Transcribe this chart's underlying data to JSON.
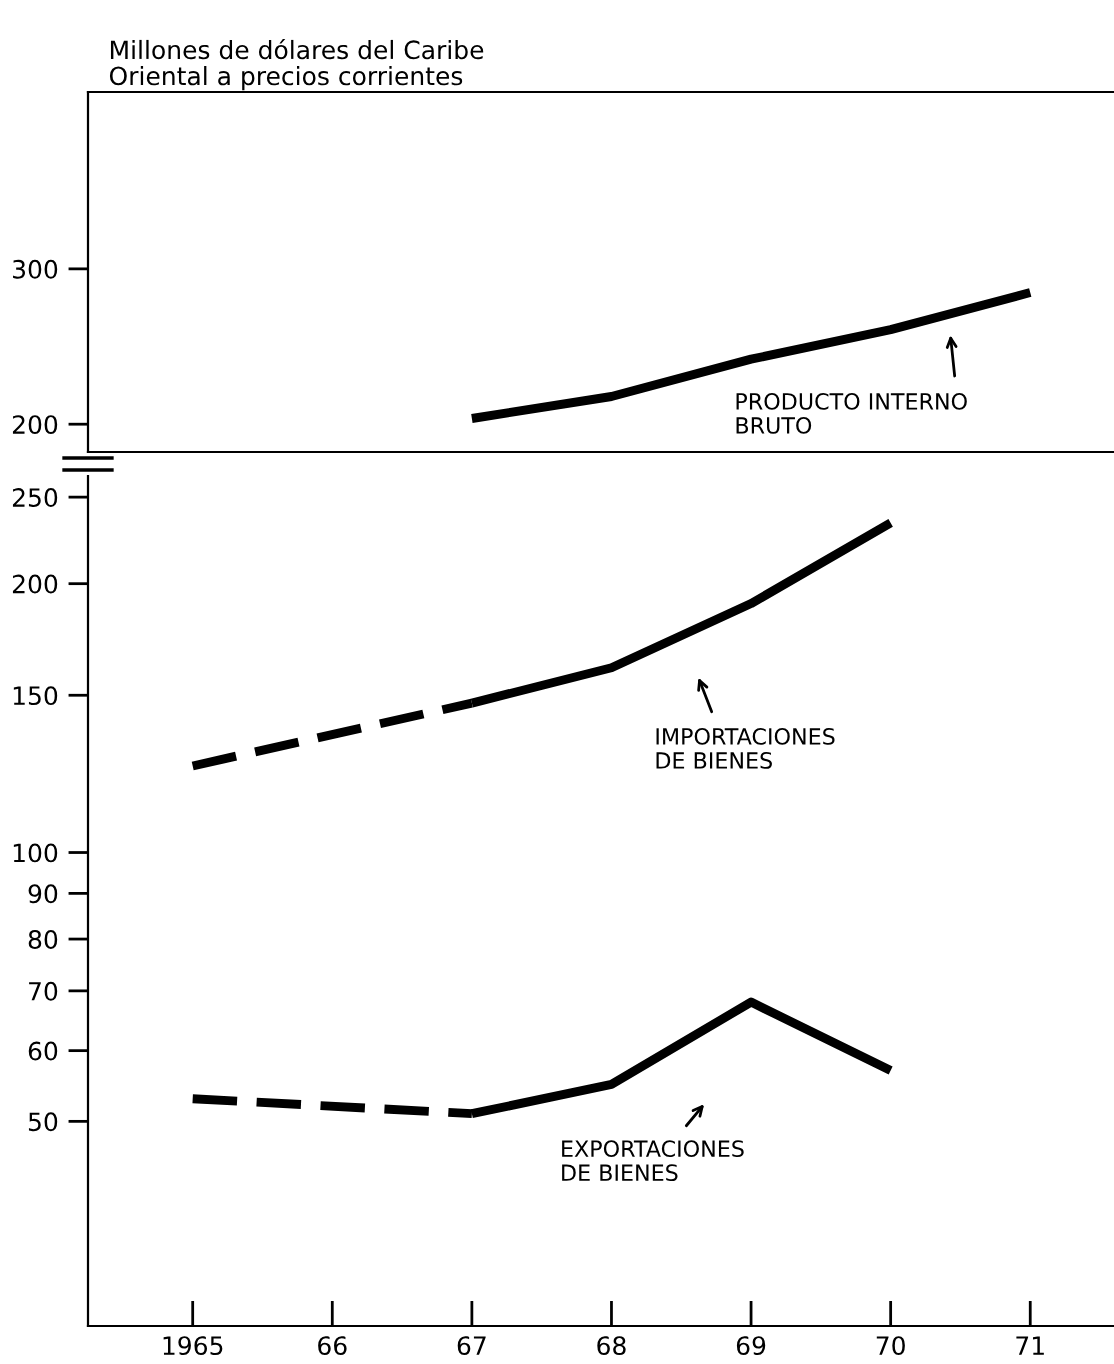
{
  "chart_data": [
    {
      "type": "line",
      "ylabel": "Millones de dólares del Caribe\nOriental a precios corrientes",
      "log": true,
      "tick_labels": "y",
      "xlim": [
        1964.25,
        1971.6
      ],
      "ylim": [
        186,
        476
      ],
      "yticks": [
        200,
        300
      ],
      "series": [
        {
          "color": "#000000",
          "line_style": "solid",
          "x": [
            1967,
            1968,
            1969,
            1970,
            1971
          ],
          "values": [
            203,
            215,
            237,
            256,
            282
          ]
        }
      ],
      "annotations": [
        "PRODUCTO INTERNO\nBRUTO"
      ]
    },
    {
      "type": "line",
      "log": true,
      "xlim": [
        1964.25,
        1971.6
      ],
      "ylim": [
        29.5,
        264
      ],
      "yticks": [
        50,
        60,
        70,
        80,
        90,
        100,
        150,
        200,
        250
      ],
      "xticks": [
        {
          "value": 1965,
          "label": "1965"
        },
        {
          "value": 1966,
          "label": "66"
        },
        {
          "value": 1967,
          "label": "67"
        },
        {
          "value": 1968,
          "label": "68"
        },
        {
          "value": 1969,
          "label": "69"
        },
        {
          "value": 1970,
          "label": "70"
        },
        {
          "value": 1971,
          "label": "71"
        }
      ],
      "series": [
        {
          "color": "#000000",
          "line_style": "dashed",
          "x": [
            1965,
            1967
          ],
          "values": [
            125,
            147
          ]
        },
        {
          "color": "#000000",
          "line_style": "solid",
          "x": [
            1967,
            1968,
            1969,
            1970
          ],
          "values": [
            147,
            161,
            190,
            234
          ]
        },
        {
          "color": "#000000",
          "line_style": "dashed",
          "x": [
            1965,
            1967
          ],
          "values": [
            53,
            51
          ]
        },
        {
          "color": "#000000",
          "line_style": "solid",
          "x": [
            1967,
            1968,
            1969,
            1970
          ],
          "values": [
            51,
            55,
            68,
            57
          ]
        }
      ],
      "annotations": [
        "IMPORTACIONES\nDE BIENES",
        "EXPORTACIONES\nDE BIENES"
      ]
    }
  ]
}
